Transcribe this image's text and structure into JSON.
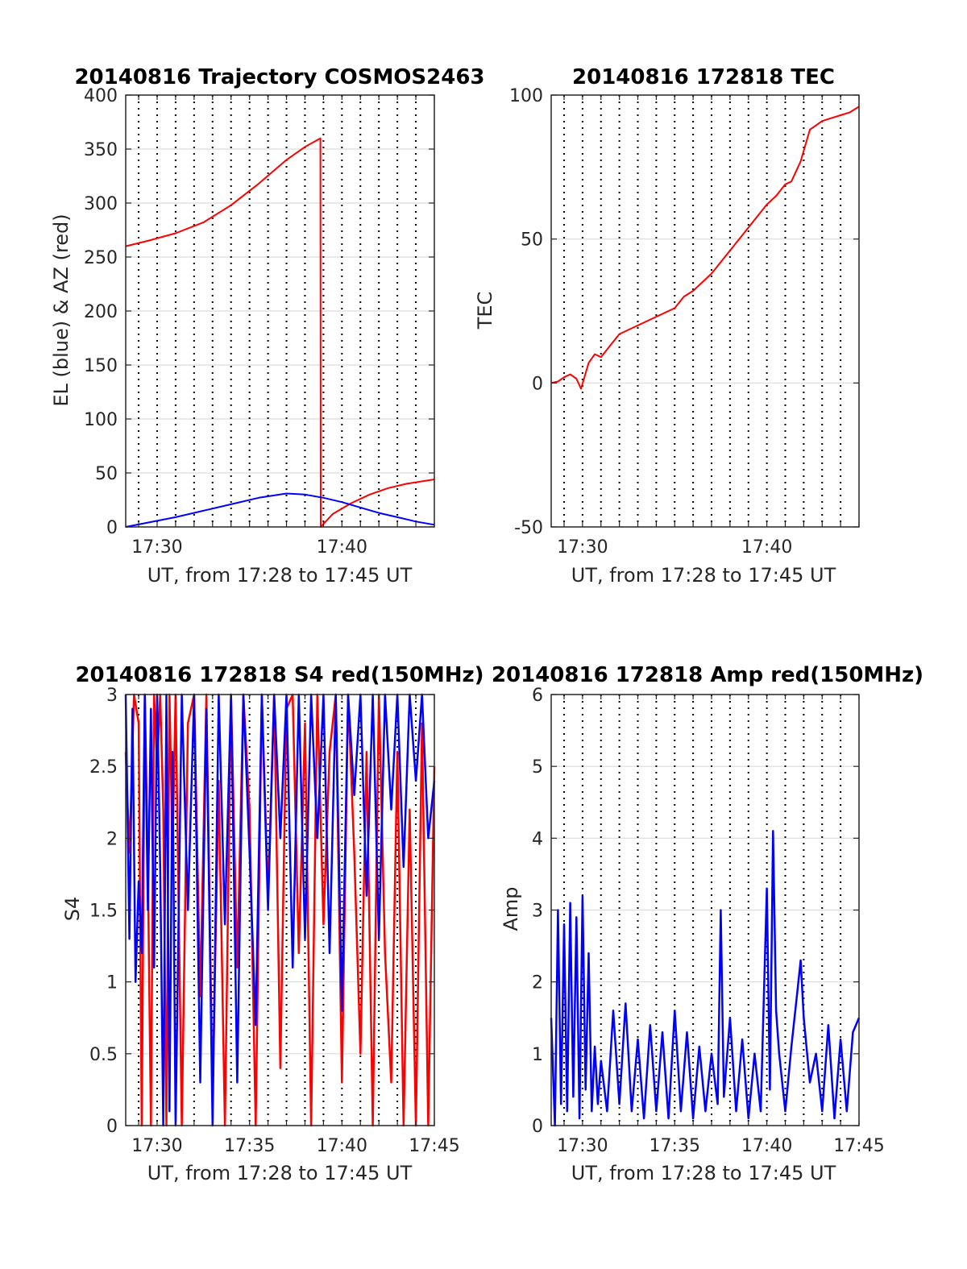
{
  "colors": {
    "red": "#ff0000",
    "blue": "#0000ff",
    "grid": "#dcdcdc",
    "axis": "#262626"
  },
  "x_tick_minutes": [
    29,
    30,
    31,
    32,
    33,
    34,
    35,
    36,
    37,
    38,
    39,
    40,
    41,
    42,
    43,
    44,
    45
  ],
  "chart_data": [
    {
      "id": "trajectory",
      "type": "line",
      "title": "20140816 Trajectory COSMOS2463",
      "xlabel": "UT, from 17:28 to 17:45 UT",
      "ylabel": "EL (blue) & AZ (red)",
      "xlim": [
        "17:28:18",
        "17:45:00"
      ],
      "ylim": [
        0,
        400
      ],
      "yticks": [
        0,
        50,
        100,
        150,
        200,
        250,
        300,
        350,
        400
      ],
      "xticks": [
        "17:30",
        "17:40"
      ],
      "grid": true,
      "series": [
        {
          "color": "red",
          "x": [
            "17:28:18",
            "17:29:30",
            "17:31:00",
            "17:32:30",
            "17:34:00",
            "17:35:30",
            "17:37:00",
            "17:38:00",
            "17:38:50",
            "17:38:51",
            "17:39:30",
            "17:40:30",
            "17:41:30",
            "17:42:30",
            "17:43:30",
            "17:45:00"
          ],
          "y": [
            260,
            265,
            272,
            282,
            298,
            318,
            340,
            352,
            360,
            0,
            12,
            22,
            30,
            36,
            40,
            44
          ]
        },
        {
          "color": "blue",
          "x": [
            "17:28:18",
            "17:29:30",
            "17:31:00",
            "17:32:30",
            "17:34:00",
            "17:35:30",
            "17:37:00",
            "17:38:00",
            "17:39:00",
            "17:40:00",
            "17:41:00",
            "17:42:00",
            "17:43:00",
            "17:44:00",
            "17:45:00"
          ],
          "y": [
            0,
            4,
            9,
            15,
            21,
            27,
            31,
            30,
            27,
            23,
            18,
            13,
            9,
            5,
            2
          ]
        }
      ]
    },
    {
      "id": "tec",
      "type": "line",
      "title": "20140816 172818 TEC",
      "xlabel": "UT, from 17:28 to 17:45 UT",
      "ylabel": "TEC",
      "xlim": [
        "17:28:18",
        "17:45:00"
      ],
      "ylim": [
        -50,
        100
      ],
      "yticks": [
        -50,
        0,
        50,
        100
      ],
      "xticks": [
        "17:30",
        "17:40"
      ],
      "grid": true,
      "series": [
        {
          "color": "red",
          "x": [
            "17:28:18",
            "17:28:40",
            "17:29:00",
            "17:29:20",
            "17:29:40",
            "17:29:55",
            "17:30:20",
            "17:30:40",
            "17:31:00",
            "17:31:30",
            "17:32:00",
            "17:33:00",
            "17:34:00",
            "17:35:00",
            "17:35:30",
            "17:36:00",
            "17:37:00",
            "17:38:00",
            "17:39:00",
            "17:40:00",
            "17:40:30",
            "17:41:00",
            "17:41:20",
            "17:41:50",
            "17:42:20",
            "17:43:00",
            "17:43:30",
            "17:44:00",
            "17:44:30",
            "17:45:00"
          ],
          "y": [
            0,
            0.5,
            2,
            3,
            1.5,
            -2,
            7,
            10,
            9,
            13,
            17,
            20,
            23,
            26,
            30,
            32,
            38,
            46,
            54,
            62,
            65,
            69,
            70,
            77,
            88,
            91,
            92,
            93,
            94,
            96
          ]
        }
      ]
    },
    {
      "id": "s4",
      "type": "line",
      "title": "20140816 172818 S4 red(150MHz)",
      "xlabel": "UT, from 17:28 to 17:45 UT",
      "ylabel": "S4",
      "xlim": [
        "17:28:18",
        "17:45:00"
      ],
      "ylim": [
        0,
        3
      ],
      "yticks": [
        0,
        0.5,
        1,
        1.5,
        2,
        2.5,
        3
      ],
      "xticks": [
        "17:30",
        "17:35",
        "17:40",
        "17:45"
      ],
      "grid": true,
      "series": [
        {
          "color": "red",
          "x": [
            "17:28:18",
            "17:28:30",
            "17:28:45",
            "17:29:00",
            "17:29:10",
            "17:29:20",
            "17:29:30",
            "17:29:40",
            "17:29:50",
            "17:30:00",
            "17:30:10",
            "17:30:20",
            "17:30:30",
            "17:30:40",
            "17:30:50",
            "17:31:00",
            "17:31:20",
            "17:31:40",
            "17:32:00",
            "17:32:20",
            "17:32:40",
            "17:33:00",
            "17:33:20",
            "17:33:40",
            "17:34:00",
            "17:34:20",
            "17:34:40",
            "17:35:00",
            "17:35:20",
            "17:35:40",
            "17:36:00",
            "17:36:20",
            "17:36:40",
            "17:37:00",
            "17:37:20",
            "17:37:40",
            "17:38:00",
            "17:38:20",
            "17:38:40",
            "17:39:00",
            "17:39:20",
            "17:39:40",
            "17:40:00",
            "17:40:20",
            "17:40:40",
            "17:41:00",
            "17:41:20",
            "17:41:40",
            "17:42:00",
            "17:42:20",
            "17:42:40",
            "17:43:00",
            "17:43:20",
            "17:43:40",
            "17:44:00",
            "17:44:20",
            "17:44:40",
            "17:45:00"
          ],
          "y": [
            2.6,
            1.9,
            3.0,
            2.8,
            0,
            3.0,
            1.8,
            0,
            3.0,
            2.5,
            3.0,
            2.2,
            0,
            3.0,
            1.9,
            3.0,
            0,
            2.8,
            3.0,
            0.9,
            3.0,
            0.2,
            2.4,
            0,
            3.0,
            1.1,
            3.0,
            2.2,
            0,
            3.0,
            1.6,
            3.0,
            0.4,
            2.9,
            3.0,
            1.2,
            2.8,
            0,
            3.0,
            1.4,
            2.6,
            3.0,
            0.3,
            3.0,
            1.9,
            0.5,
            2.6,
            0,
            3.0,
            1.2,
            0.3,
            2.6,
            0,
            2.2,
            0,
            2.8,
            0,
            2.5
          ]
        },
        {
          "color": "blue",
          "x": [
            "17:28:18",
            "17:28:30",
            "17:28:40",
            "17:28:50",
            "17:29:00",
            "17:29:10",
            "17:29:20",
            "17:29:30",
            "17:29:40",
            "17:29:50",
            "17:30:00",
            "17:30:10",
            "17:30:20",
            "17:30:30",
            "17:30:40",
            "17:30:50",
            "17:31:00",
            "17:31:20",
            "17:31:40",
            "17:32:00",
            "17:32:20",
            "17:32:40",
            "17:33:00",
            "17:33:20",
            "17:33:40",
            "17:34:00",
            "17:34:20",
            "17:34:40",
            "17:35:00",
            "17:35:20",
            "17:35:40",
            "17:36:00",
            "17:36:20",
            "17:36:40",
            "17:37:00",
            "17:37:20",
            "17:37:40",
            "17:38:00",
            "17:38:20",
            "17:38:40",
            "17:39:00",
            "17:39:20",
            "17:39:40",
            "17:40:00",
            "17:40:20",
            "17:40:40",
            "17:41:00",
            "17:41:20",
            "17:41:40",
            "17:42:00",
            "17:42:20",
            "17:42:40",
            "17:43:00",
            "17:43:20",
            "17:43:40",
            "17:44:00",
            "17:44:20",
            "17:44:40",
            "17:45:00"
          ],
          "y": [
            3.0,
            1.3,
            2.9,
            1.0,
            1.7,
            1.2,
            3.0,
            1.5,
            2.9,
            1.1,
            3.0,
            1.8,
            0,
            3.0,
            0.1,
            2.6,
            0,
            3.0,
            1.5,
            3.0,
            0.3,
            2.9,
            0,
            3.0,
            1.4,
            3.0,
            0.3,
            3.0,
            1.9,
            0.7,
            3.0,
            1.5,
            3.0,
            2.0,
            3.0,
            1.1,
            3.0,
            1.3,
            3.0,
            2.0,
            3.0,
            1.2,
            3.0,
            0.8,
            3.0,
            2.3,
            3.0,
            1.6,
            3.0,
            1.3,
            3.0,
            2.2,
            3.0,
            1.8,
            3.0,
            2.4,
            3.0,
            2.0,
            2.4
          ]
        }
      ]
    },
    {
      "id": "amp",
      "type": "line",
      "title": "20140816 172818 Amp red(150MHz)",
      "xlabel": "UT, from 17:28 to 17:45 UT",
      "ylabel": "Amp",
      "xlim": [
        "17:28:18",
        "17:45:00"
      ],
      "ylim": [
        0,
        6
      ],
      "yticks": [
        0,
        1,
        2,
        3,
        4,
        5,
        6
      ],
      "xticks": [
        "17:30",
        "17:35",
        "17:40",
        "17:45"
      ],
      "grid": true,
      "series": [
        {
          "color": "blue",
          "x": [
            "17:28:18",
            "17:28:30",
            "17:28:40",
            "17:28:50",
            "17:29:00",
            "17:29:10",
            "17:29:20",
            "17:29:30",
            "17:29:40",
            "17:29:50",
            "17:30:00",
            "17:30:10",
            "17:30:20",
            "17:30:30",
            "17:30:40",
            "17:30:50",
            "17:31:00",
            "17:31:20",
            "17:31:40",
            "17:32:00",
            "17:32:20",
            "17:32:40",
            "17:33:00",
            "17:33:20",
            "17:33:40",
            "17:34:00",
            "17:34:20",
            "17:34:40",
            "17:35:00",
            "17:35:20",
            "17:35:40",
            "17:36:00",
            "17:36:20",
            "17:36:40",
            "17:37:00",
            "17:37:20",
            "17:37:30",
            "17:37:40",
            "17:38:00",
            "17:38:20",
            "17:38:40",
            "17:39:00",
            "17:39:20",
            "17:39:40",
            "17:40:00",
            "17:40:10",
            "17:40:20",
            "17:40:30",
            "17:40:40",
            "17:41:00",
            "17:41:20",
            "17:41:40",
            "17:41:50",
            "17:42:00",
            "17:42:20",
            "17:42:40",
            "17:43:00",
            "17:43:20",
            "17:43:40",
            "17:44:00",
            "17:44:20",
            "17:44:40",
            "17:45:00"
          ],
          "y": [
            1.5,
            0,
            3.0,
            0.3,
            2.8,
            0.2,
            3.1,
            0.4,
            2.9,
            0.1,
            3.2,
            0.5,
            2.4,
            0.2,
            1.1,
            0.3,
            0.9,
            0.2,
            1.6,
            0.3,
            1.7,
            0.2,
            1.2,
            0.1,
            1.4,
            0.2,
            1.3,
            0.1,
            1.6,
            0.2,
            1.3,
            0.1,
            1.1,
            0.2,
            1.0,
            0.3,
            3.0,
            0.4,
            1.5,
            0.2,
            1.2,
            0.1,
            1.0,
            0.2,
            3.3,
            0.5,
            4.1,
            1.6,
            1.0,
            0.2,
            1.1,
            1.9,
            2.3,
            1.5,
            0.6,
            1.0,
            0.2,
            1.4,
            0.1,
            1.2,
            0.2,
            1.3,
            1.5
          ]
        }
      ]
    }
  ]
}
